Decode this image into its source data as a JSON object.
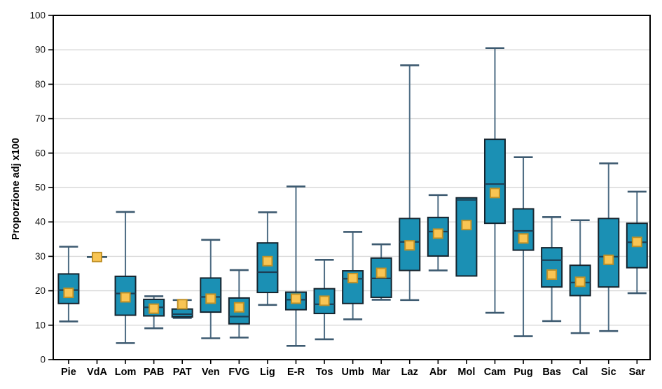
{
  "figure": {
    "ylabel": "Proporzione adj x100"
  },
  "colors": {
    "box_fill": "#1b90b4",
    "box_stroke": "#16242e",
    "median": "#1c3f55",
    "whisker": "#4e6d84",
    "whisker_cap": "#3d5a70",
    "mean_fill": "#f9c553",
    "mean_stroke": "#c09127",
    "gridline": "#d9d9d9",
    "frame": "#000000",
    "tick_text": "#1a1a1a"
  },
  "chart_data": {
    "type": "box",
    "title": "",
    "xlabel": "",
    "ylabel": "Proporzione adj x100",
    "ylim": [
      0,
      100
    ],
    "ytick_step": 10,
    "ytick_values": [
      0,
      10,
      20,
      30,
      40,
      50,
      60,
      70,
      80,
      90,
      100
    ],
    "grid": true,
    "legend": "none",
    "mean_marker": "square",
    "categories": [
      "Pie",
      "VdA",
      "Lom",
      "PAB",
      "PAT",
      "Ven",
      "FVG",
      "Lig",
      "E-R",
      "Tos",
      "Umb",
      "Mar",
      "Laz",
      "Abr",
      "Mol",
      "Cam",
      "Pug",
      "Bas",
      "Cal",
      "Sic",
      "Sar"
    ],
    "stats": [
      {
        "label": "Pie",
        "min": 11.1,
        "q1": 16.3,
        "median": 20.2,
        "q3": 24.9,
        "max": 32.8,
        "mean": 19.4
      },
      {
        "label": "VdA",
        "min": 29.8,
        "q1": 29.8,
        "median": 29.8,
        "q3": 29.8,
        "max": 29.8,
        "mean": 29.8
      },
      {
        "label": "Lom",
        "min": 4.8,
        "q1": 12.9,
        "median": 19.2,
        "q3": 24.2,
        "max": 42.9,
        "mean": 18.1
      },
      {
        "label": "PAB",
        "min": 9.1,
        "q1": 12.7,
        "median": 15.2,
        "q3": 17.5,
        "max": 18.4,
        "mean": 14.8
      },
      {
        "label": "PAT",
        "min": 12.1,
        "q1": 12.4,
        "median": 13.2,
        "q3": 14.7,
        "max": 17.3,
        "mean": 16.1
      },
      {
        "label": "Ven",
        "min": 6.2,
        "q1": 13.8,
        "median": 18.2,
        "q3": 23.7,
        "max": 34.8,
        "mean": 17.7
      },
      {
        "label": "FVG",
        "min": 6.4,
        "q1": 10.4,
        "median": 12.5,
        "q3": 17.9,
        "max": 26.0,
        "mean": 15.2
      },
      {
        "label": "Lig",
        "min": 15.9,
        "q1": 19.5,
        "median": 25.4,
        "q3": 33.9,
        "max": 42.8,
        "mean": 28.6
      },
      {
        "label": "E-R",
        "min": 4.0,
        "q1": 14.5,
        "median": 17.4,
        "q3": 19.6,
        "max": 50.3,
        "mean": 17.7
      },
      {
        "label": "Tos",
        "min": 5.9,
        "q1": 13.4,
        "median": 16.1,
        "q3": 20.6,
        "max": 29.0,
        "mean": 17.1
      },
      {
        "label": "Umb",
        "min": 11.7,
        "q1": 16.3,
        "median": 23.5,
        "q3": 25.8,
        "max": 37.1,
        "mean": 23.7
      },
      {
        "label": "Mar",
        "min": 17.4,
        "q1": 18.1,
        "median": 23.6,
        "q3": 29.5,
        "max": 33.5,
        "mean": 25.2
      },
      {
        "label": "Laz",
        "min": 17.3,
        "q1": 25.9,
        "median": 34.2,
        "q3": 41.0,
        "max": 85.5,
        "mean": 33.2
      },
      {
        "label": "Abr",
        "min": 25.9,
        "q1": 30.1,
        "median": 37.2,
        "q3": 41.3,
        "max": 47.8,
        "mean": 36.6
      },
      {
        "label": "Mol",
        "min": 24.3,
        "q1": 24.3,
        "median": 46.4,
        "q3": 47.0,
        "max": 47.0,
        "mean": 39.1
      },
      {
        "label": "Cam",
        "min": 13.6,
        "q1": 39.6,
        "median": 51.0,
        "q3": 64.0,
        "max": 90.5,
        "mean": 48.4
      },
      {
        "label": "Pug",
        "min": 6.8,
        "q1": 31.8,
        "median": 37.4,
        "q3": 43.8,
        "max": 58.8,
        "mean": 35.2
      },
      {
        "label": "Bas",
        "min": 11.2,
        "q1": 21.1,
        "median": 28.9,
        "q3": 32.5,
        "max": 41.4,
        "mean": 24.7
      },
      {
        "label": "Cal",
        "min": 7.7,
        "q1": 18.6,
        "median": 22.4,
        "q3": 27.4,
        "max": 40.5,
        "mean": 22.6
      },
      {
        "label": "Sic",
        "min": 8.3,
        "q1": 21.1,
        "median": 29.9,
        "q3": 41.0,
        "max": 57.0,
        "mean": 29.0
      },
      {
        "label": "Sar",
        "min": 19.3,
        "q1": 26.7,
        "median": 34.1,
        "q3": 39.6,
        "max": 48.8,
        "mean": 34.2
      }
    ]
  }
}
